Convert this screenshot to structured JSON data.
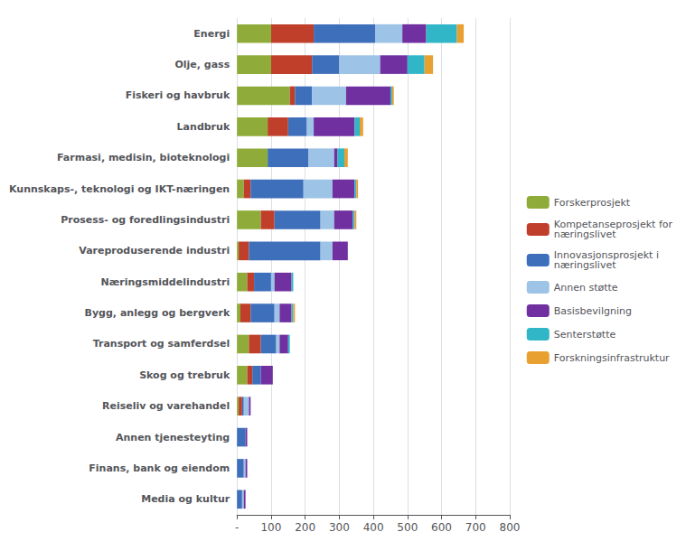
{
  "chart_data": {
    "type": "bar",
    "orientation": "horizontal",
    "stacked": true,
    "grid": true,
    "legend": "right",
    "categories": [
      "Energi",
      "Olje, gass",
      "Fiskeri og havbruk",
      "Landbruk",
      "Farmasi, medisin, bioteknologi",
      "Kunnskaps-, teknologi og IKT-næringen",
      "Prosess- og foredlingsindustri",
      "Vareproduserende industri",
      "Næringsmiddelindustri",
      "Bygg, anlegg og bergverk",
      "Transport og samferdsel",
      "Skog og trebruk",
      "Reiseliv og varehandel",
      "Annen tjenesteyting",
      "Finans, bank og eiendom",
      "Media og kultur"
    ],
    "series": [
      {
        "name": "Forskerprosjekt",
        "color": "#8fac3a",
        "values": [
          100,
          100,
          155,
          90,
          90,
          20,
          70,
          5,
          30,
          10,
          35,
          30,
          5,
          0,
          0,
          0
        ]
      },
      {
        "name": "Kompetanseprosjekt for\nnæringslivet",
        "color": "#bf3f2a",
        "values": [
          125,
          120,
          15,
          60,
          0,
          20,
          40,
          30,
          20,
          30,
          35,
          15,
          10,
          0,
          0,
          0
        ]
      },
      {
        "name": "Innovasjonsprosjekt i\nnæringslivet",
        "color": "#3e6fbb",
        "values": [
          180,
          80,
          50,
          55,
          120,
          155,
          135,
          210,
          50,
          70,
          45,
          25,
          5,
          25,
          20,
          15
        ]
      },
      {
        "name": "Annen støtte",
        "color": "#9dc3e6",
        "values": [
          80,
          120,
          100,
          20,
          75,
          85,
          40,
          35,
          10,
          15,
          10,
          0,
          15,
          0,
          5,
          5
        ]
      },
      {
        "name": "Basisbevilgning",
        "color": "#7030a0",
        "values": [
          70,
          80,
          130,
          120,
          10,
          65,
          55,
          45,
          50,
          35,
          25,
          35,
          5,
          5,
          5,
          5
        ]
      },
      {
        "name": "Senterstøtte",
        "color": "#31b6c8",
        "values": [
          90,
          50,
          5,
          15,
          20,
          5,
          5,
          0,
          5,
          5,
          5,
          0,
          0,
          0,
          0,
          0
        ]
      },
      {
        "name": "Forskningsinfrastruktur",
        "color": "#e8a030",
        "values": [
          20,
          25,
          5,
          10,
          10,
          5,
          5,
          0,
          0,
          5,
          0,
          0,
          0,
          0,
          0,
          0
        ]
      }
    ],
    "xlim": [
      0,
      800
    ],
    "xticks": [
      {
        "value": 0,
        "label": "-"
      },
      100,
      200,
      300,
      400,
      500,
      600,
      700,
      800
    ]
  }
}
